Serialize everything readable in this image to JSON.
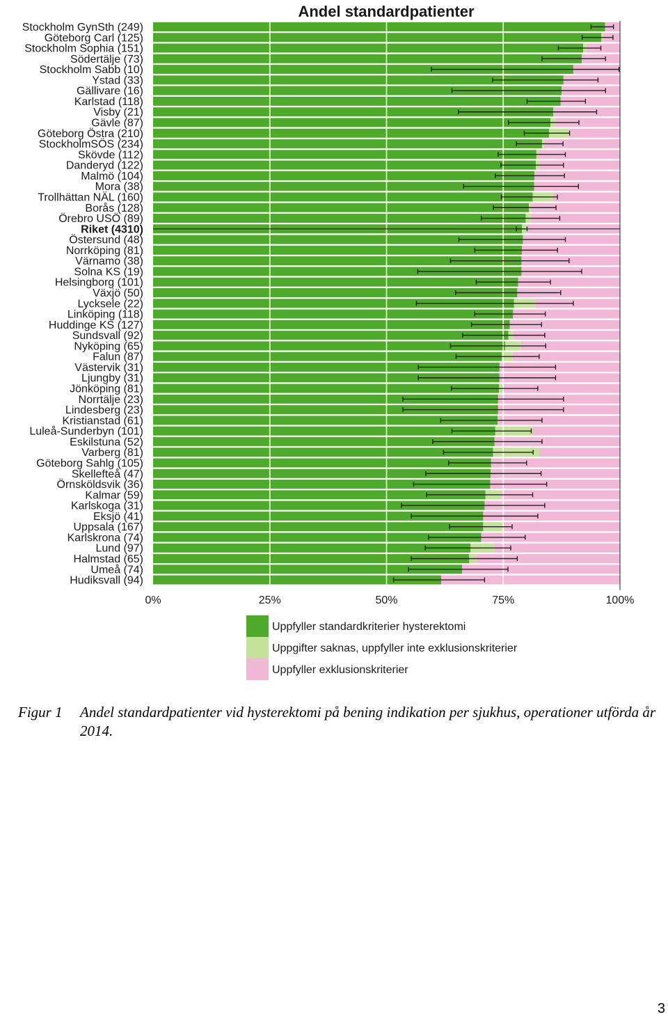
{
  "caption": {
    "label": "Figur 1",
    "text": "Andel standardpatienter vid hysterektomi på bening indikation per sjukhus, operationer utförda år 2014."
  },
  "page_number": "3",
  "colors": {
    "standard": "#4eaa2a",
    "missing": "#c4e29a",
    "exclusion": "#f2b8d8",
    "errorbar": "#222222",
    "gridline": "#ffffff"
  },
  "chart_data": {
    "type": "bar",
    "orientation": "horizontal",
    "stacked": true,
    "title": "Andel standardpatienter",
    "xlabel": "",
    "ylabel": "",
    "xlim": [
      0,
      100
    ],
    "x_ticks": [
      "0%",
      "25%",
      "50%",
      "75%",
      "100%"
    ],
    "legend_position": "bottom",
    "grid": "vertical",
    "highlighted_category": "Riket (4310)",
    "series_names": [
      "Uppfyller standardkriterier hysterektomi",
      "Uppgifter saknas, uppfyller inte exklusionskriterier",
      "Uppfyller exklusionskriterier"
    ],
    "categories": [
      "Stockholm GynSth (249)",
      "Göteborg Carl (125)",
      "Stockholm Sophia (151)",
      "Södertälje (73)",
      "Stockholm Sabb (10)",
      "Ystad (33)",
      "Gällivare (16)",
      "Karlstad (118)",
      "Visby (21)",
      "Gävle (87)",
      "Göteborg Östra (210)",
      "StockholmSÖS (234)",
      "Skövde (112)",
      "Danderyd (122)",
      "Malmö (104)",
      "Mora (38)",
      "Trollhättan NÄL (160)",
      "Borås (128)",
      "Örebro USÖ (89)",
      "Riket (4310)",
      "Östersund (48)",
      "Norrköping (81)",
      "Värnamo (38)",
      "Solna KS (19)",
      "Helsingborg (101)",
      "Växjö (50)",
      "Lycksele (22)",
      "Linköping (118)",
      "Huddinge KS (127)",
      "Sundsvall (92)",
      "Nyköping (65)",
      "Falun (87)",
      "Västervik (31)",
      "Ljungby (31)",
      "Jönköping (81)",
      "Norrtälje (23)",
      "Lindesberg (23)",
      "Kristianstad (61)",
      "Luleå-Sunderbyn (101)",
      "Eskilstuna (52)",
      "Varberg (81)",
      "Göteborg Sahlg (105)",
      "Skellefteå (47)",
      "Örnsköldsvik (36)",
      "Kalmar (59)",
      "Karlskoga (31)",
      "Eksjö (41)",
      "Uppsala (167)",
      "Karlskrona (74)",
      "Lund (97)",
      "Halmstad (65)",
      "Umeå (74)",
      "Hudiksvall (94)"
    ],
    "standard": [
      96.8,
      96.0,
      92.1,
      91.8,
      90.0,
      87.9,
      87.5,
      87.3,
      85.7,
      85.1,
      84.8,
      83.3,
      82.1,
      82.0,
      81.7,
      81.6,
      81.3,
      80.5,
      79.8,
      79.0,
      79.2,
      79.0,
      78.9,
      78.9,
      78.2,
      78.0,
      77.3,
      77.1,
      76.4,
      76.1,
      75.4,
      74.7,
      74.2,
      74.2,
      74.1,
      73.9,
      73.9,
      73.8,
      73.3,
      73.1,
      72.8,
      72.4,
      72.3,
      72.2,
      71.2,
      71.0,
      70.7,
      70.7,
      70.3,
      68.0,
      67.7,
      66.2,
      61.7
    ],
    "missing": [
      0.0,
      0.4,
      0.7,
      0.0,
      0.0,
      0.0,
      0.0,
      0.0,
      0.0,
      1.1,
      4.3,
      0.4,
      0.4,
      0.8,
      0.0,
      0.0,
      4.4,
      0.4,
      1.1,
      1.2,
      0.0,
      0.0,
      0.0,
      0.0,
      0.0,
      0.0,
      4.5,
      0.0,
      0.0,
      1.0,
      3.4,
      2.3,
      0.0,
      0.0,
      0.8,
      0.0,
      0.0,
      0.0,
      8.0,
      0.0,
      9.9,
      0.0,
      0.0,
      0.0,
      3.4,
      0.0,
      0.0,
      4.2,
      0.0,
      5.1,
      1.5,
      0.0,
      0.0
    ],
    "exclusion": [
      3.2,
      3.6,
      7.2,
      8.2,
      10.0,
      12.1,
      12.5,
      12.7,
      14.3,
      13.8,
      10.9,
      16.3,
      17.5,
      17.2,
      18.3,
      18.4,
      14.3,
      19.1,
      19.1,
      19.8,
      20.8,
      21.0,
      21.1,
      21.1,
      21.8,
      22.0,
      18.2,
      22.9,
      23.6,
      22.9,
      21.2,
      23.0,
      25.8,
      25.8,
      25.1,
      26.1,
      26.1,
      26.2,
      18.7,
      26.9,
      17.3,
      27.6,
      27.7,
      27.8,
      25.4,
      29.0,
      29.3,
      25.1,
      29.7,
      26.9,
      30.8,
      33.8,
      38.3
    ],
    "ci_low": [
      93.8,
      91.9,
      86.8,
      83.3,
      59.6,
      72.7,
      64.0,
      80.1,
      65.4,
      76.1,
      79.5,
      77.8,
      73.9,
      74.5,
      73.3,
      66.5,
      74.6,
      72.9,
      70.3,
      77.8,
      65.5,
      68.9,
      63.7,
      56.7,
      69.2,
      64.8,
      56.4,
      68.9,
      68.2,
      66.3,
      63.7,
      64.9,
      56.8,
      56.8,
      63.9,
      53.5,
      53.5,
      61.6,
      64.0,
      59.9,
      62.2,
      63.3,
      58.4,
      55.8,
      58.6,
      53.2,
      55.3,
      63.5,
      59.0,
      58.3,
      55.3,
      54.7,
      51.5
    ],
    "ci_high": [
      98.6,
      98.5,
      95.9,
      96.9,
      99.8,
      95.3,
      96.9,
      92.6,
      95.0,
      91.2,
      89.2,
      87.8,
      88.3,
      87.9,
      88.1,
      91.1,
      86.6,
      86.3,
      87.1,
      80.1,
      88.3,
      86.6,
      89.1,
      91.8,
      85.1,
      87.3,
      90.0,
      84.0,
      83.2,
      83.9,
      84.1,
      82.7,
      86.2,
      86.2,
      82.4,
      87.9,
      87.9,
      83.3,
      81.0,
      83.3,
      81.4,
      80.0,
      83.1,
      84.3,
      81.3,
      83.9,
      82.4,
      76.9,
      79.7,
      76.6,
      78.0,
      76.0,
      71.0
    ]
  }
}
